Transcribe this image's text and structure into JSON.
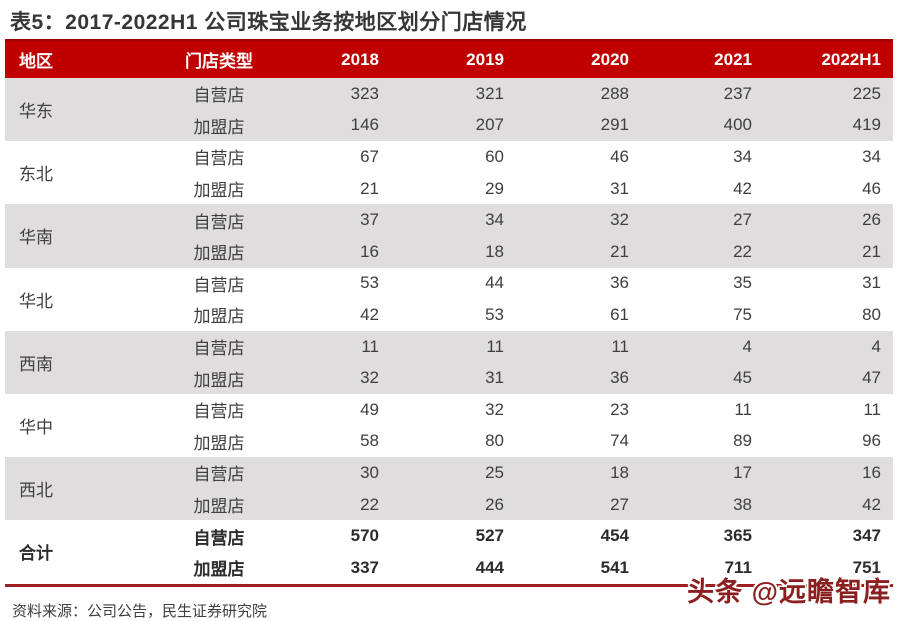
{
  "title": "表5：2017-2022H1 公司珠宝业务按地区划分门店情况",
  "table": {
    "columns": [
      "地区",
      "门店类型",
      "2018",
      "2019",
      "2020",
      "2021",
      "2022H1"
    ],
    "groups": [
      {
        "region": "华东",
        "rows": [
          {
            "type": "自营店",
            "values": [
              323,
              321,
              288,
              237,
              225
            ]
          },
          {
            "type": "加盟店",
            "values": [
              146,
              207,
              291,
              400,
              419
            ]
          }
        ]
      },
      {
        "region": "东北",
        "rows": [
          {
            "type": "自营店",
            "values": [
              67,
              60,
              46,
              34,
              34
            ]
          },
          {
            "type": "加盟店",
            "values": [
              21,
              29,
              31,
              42,
              46
            ]
          }
        ]
      },
      {
        "region": "华南",
        "rows": [
          {
            "type": "自营店",
            "values": [
              37,
              34,
              32,
              27,
              26
            ]
          },
          {
            "type": "加盟店",
            "values": [
              16,
              18,
              21,
              22,
              21
            ]
          }
        ]
      },
      {
        "region": "华北",
        "rows": [
          {
            "type": "自营店",
            "values": [
              53,
              44,
              36,
              35,
              31
            ]
          },
          {
            "type": "加盟店",
            "values": [
              42,
              53,
              61,
              75,
              80
            ]
          }
        ]
      },
      {
        "region": "西南",
        "rows": [
          {
            "type": "自营店",
            "values": [
              11,
              11,
              11,
              4,
              4
            ]
          },
          {
            "type": "加盟店",
            "values": [
              32,
              31,
              36,
              45,
              47
            ]
          }
        ]
      },
      {
        "region": "华中",
        "rows": [
          {
            "type": "自营店",
            "values": [
              49,
              32,
              23,
              11,
              11
            ]
          },
          {
            "type": "加盟店",
            "values": [
              58,
              80,
              74,
              89,
              96
            ]
          }
        ]
      },
      {
        "region": "西北",
        "rows": [
          {
            "type": "自营店",
            "values": [
              30,
              25,
              18,
              17,
              16
            ]
          },
          {
            "type": "加盟店",
            "values": [
              22,
              26,
              27,
              38,
              42
            ]
          }
        ]
      },
      {
        "region": "合计",
        "rows": [
          {
            "type": "自营店",
            "values": [
              570,
              527,
              454,
              365,
              347
            ]
          },
          {
            "type": "加盟店",
            "values": [
              337,
              444,
              541,
              711,
              751
            ]
          }
        ]
      }
    ]
  },
  "footer": {
    "source": "资料来源：公司公告，民生证券研究院"
  },
  "watermark": "头条 @远瞻智库",
  "colors": {
    "header_bg": "#c00000",
    "header_text": "#ffffff",
    "stripe_bg": "#dfdddd",
    "body_text": "#3f3f3f",
    "title_text": "#363636",
    "bottom_rule": "#9e1f1f",
    "watermark_text": "#8b1e1e"
  }
}
